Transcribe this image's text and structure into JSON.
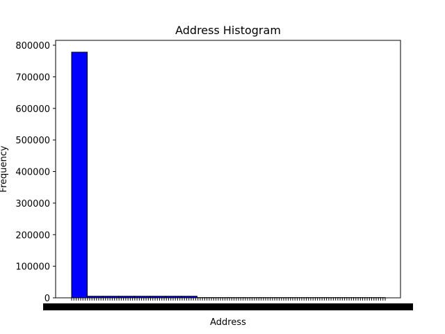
{
  "chart_data": {
    "type": "bar",
    "title": "Address Histogram",
    "xlabel": "Address",
    "ylabel": "Frequency",
    "ylim": [
      0,
      820000
    ],
    "yticks": [
      0,
      100000,
      200000,
      300000,
      400000,
      500000,
      600000,
      700000,
      800000
    ],
    "bins": 20,
    "values": [
      778000,
      5000,
      5000,
      5000,
      5000,
      5000,
      5000,
      5000,
      800,
      800,
      800,
      800,
      800,
      800,
      800,
      800,
      800,
      800,
      800,
      800
    ],
    "grid": false,
    "legend": "none",
    "colors": {
      "bar_fill": "#0000ff",
      "bar_edge": "#000000",
      "axes": "#000000",
      "background": "#ffffff"
    }
  }
}
